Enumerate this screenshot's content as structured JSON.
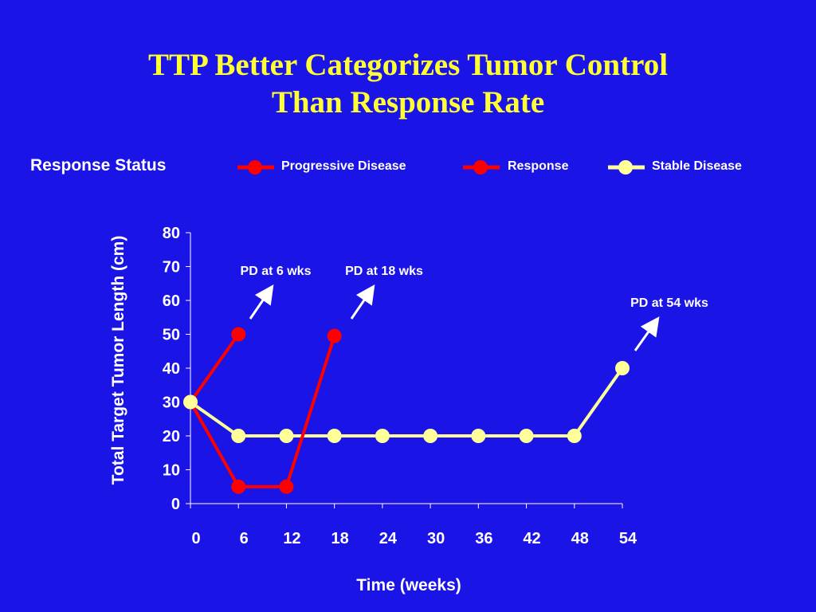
{
  "title": {
    "line1": "TTP Better Categorizes Tumor Control",
    "line2": "Than Response Rate"
  },
  "legend": {
    "heading": "Response Status",
    "items": [
      {
        "label": "Progressive Disease",
        "color": "#ff0000"
      },
      {
        "label": "Response",
        "color": "#ff0000"
      },
      {
        "label": "Stable Disease",
        "color": "#ffff99"
      }
    ]
  },
  "colors": {
    "background": "#1a14e6",
    "title": "#ffff33",
    "text": "#ffffff",
    "progressive": "#ff0000",
    "stable": "#ffff99"
  },
  "chart_data": {
    "type": "line",
    "title": "",
    "xlabel": "Time (weeks)",
    "ylabel": "Total Target Tumor Length (cm)",
    "xlim": [
      0,
      54
    ],
    "ylim": [
      0,
      80
    ],
    "xticks": [
      "0",
      "6",
      "12",
      "18",
      "24",
      "30",
      "36",
      "42",
      "48",
      "54"
    ],
    "yticks": [
      "0",
      "10",
      "20",
      "30",
      "40",
      "50",
      "60",
      "70",
      "80"
    ],
    "grid": false,
    "legend_position": "top",
    "series": [
      {
        "name": "Progressive Disease",
        "color": "#ff0000",
        "x": [
          0,
          6
        ],
        "y": [
          30,
          50
        ]
      },
      {
        "name": "Response",
        "color": "#ff0000",
        "x": [
          0,
          6,
          12,
          18
        ],
        "y": [
          30,
          5,
          5,
          49.5
        ]
      },
      {
        "name": "Stable Disease",
        "color": "#ffff99",
        "x": [
          0,
          6,
          12,
          18,
          24,
          30,
          36,
          42,
          48,
          54
        ],
        "y": [
          30,
          20,
          20,
          20,
          20,
          20,
          20,
          20,
          20,
          40
        ]
      }
    ],
    "annotations": [
      {
        "text": "PD at 6 wks",
        "x": 6,
        "y": 50
      },
      {
        "text": "PD at 18 wks",
        "x": 18,
        "y": 49.5
      },
      {
        "text": "PD at 54 wks",
        "x": 54,
        "y": 40
      }
    ]
  }
}
